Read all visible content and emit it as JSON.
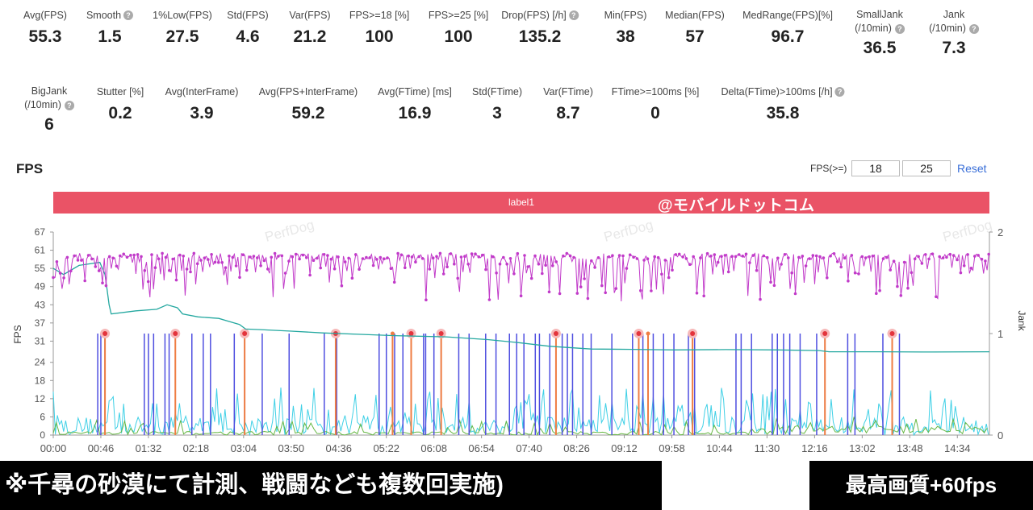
{
  "stats_row1": [
    {
      "label": "Avg(FPS)",
      "value": "55.3"
    },
    {
      "label": "Smooth",
      "value": "1.5",
      "help": true
    },
    {
      "label": "1%Low(FPS)",
      "value": "27.5"
    },
    {
      "label": "Std(FPS)",
      "value": "4.6"
    },
    {
      "label": "Var(FPS)",
      "value": "21.2"
    },
    {
      "label": "FPS>=18 [%]",
      "value": "100"
    },
    {
      "label": "FPS>=25 [%]",
      "value": "100"
    },
    {
      "label": "Drop(FPS) [/h]",
      "value": "135.2",
      "help": true
    },
    {
      "label": "Min(FPS)",
      "value": "38"
    },
    {
      "label": "Median(FPS)",
      "value": "57"
    },
    {
      "label": "MedRange(FPS)[%]",
      "value": "96.7"
    },
    {
      "label": "SmallJank",
      "label2": "(/10min)",
      "value": "36.5",
      "help": true
    },
    {
      "label": "Jank",
      "label2": "(/10min)",
      "value": "7.3",
      "help": true
    }
  ],
  "stats_row2": [
    {
      "label": "BigJank",
      "label2": "(/10min)",
      "value": "6",
      "help": true
    },
    {
      "label": "Stutter [%]",
      "value": "0.2"
    },
    {
      "label": "Avg(InterFrame)",
      "value": "3.9"
    },
    {
      "label": "Avg(FPS+InterFrame)",
      "value": "59.2"
    },
    {
      "label": "Avg(FTime) [ms]",
      "value": "16.9"
    },
    {
      "label": "Std(FTime)",
      "value": "3"
    },
    {
      "label": "Var(FTime)",
      "value": "8.7"
    },
    {
      "label": "FTime>=100ms [%]",
      "value": "0"
    },
    {
      "label": "Delta(FTime)>100ms [/h]",
      "value": "35.8",
      "help": true
    }
  ],
  "chart_header": {
    "title": "FPS",
    "threshold_label": "FPS(>=)",
    "threshold_1": "18",
    "threshold_2": "25",
    "reset_label": "Reset"
  },
  "label_bar": {
    "text": "label1",
    "color": "#ea5366"
  },
  "watermark": {
    "site": "@モバイルドットコム",
    "brand": "PerfDog"
  },
  "chart_data": {
    "type": "line",
    "ylabel": "FPS",
    "y2label": "Jank",
    "yticks": [
      0,
      6,
      12,
      18,
      24,
      31,
      37,
      43,
      49,
      55,
      61,
      67
    ],
    "y2ticks": [
      0,
      1,
      2
    ],
    "xticks": [
      "00:00",
      "00:46",
      "01:32",
      "02:18",
      "03:04",
      "03:50",
      "04:36",
      "05:22",
      "06:08",
      "06:54",
      "07:40",
      "08:26",
      "09:12",
      "09:58",
      "10:44",
      "11:30",
      "12:16",
      "13:02",
      "13:48",
      "14:34"
    ],
    "xlim_seconds": [
      0,
      905
    ],
    "colors": {
      "fps": "#c13ac9",
      "avg": "#24a8a0",
      "jank": "#4e4ee0",
      "bigjank": "#ef7d43",
      "interframe": "#3fd0e6",
      "stutter": "#67b845"
    },
    "series_avg_fps": [
      [
        0,
        55
      ],
      [
        10,
        53
      ],
      [
        25,
        56
      ],
      [
        45,
        57
      ],
      [
        50,
        53
      ],
      [
        52,
        48
      ],
      [
        54,
        43
      ],
      [
        56,
        40
      ],
      [
        80,
        41
      ],
      [
        100,
        41.5
      ],
      [
        110,
        43
      ],
      [
        120,
        42
      ],
      [
        125,
        40
      ],
      [
        140,
        39
      ],
      [
        160,
        38.5
      ],
      [
        170,
        37.5
      ],
      [
        180,
        36.5
      ],
      [
        186,
        35
      ],
      [
        200,
        34.8
      ],
      [
        230,
        34.3
      ],
      [
        260,
        33.7
      ],
      [
        300,
        33.2
      ],
      [
        330,
        32.8
      ],
      [
        380,
        32.4
      ],
      [
        420,
        31.5
      ],
      [
        450,
        30.5
      ],
      [
        480,
        29.3
      ],
      [
        520,
        28.4
      ],
      [
        560,
        28.3
      ],
      [
        600,
        28.1
      ],
      [
        650,
        28.2
      ],
      [
        700,
        28.1
      ],
      [
        740,
        27.9
      ],
      [
        750,
        27.5
      ],
      [
        800,
        27.5
      ],
      [
        850,
        27.4
      ],
      [
        905,
        27.5
      ]
    ],
    "bigjank_markers_seconds": [
      50,
      118,
      185,
      273,
      346,
      375,
      486,
      566,
      618,
      746,
      811
    ],
    "jank_spikes_seconds": [
      43,
      46,
      50,
      88,
      92,
      97,
      108,
      112,
      134,
      145,
      152,
      175,
      185,
      202,
      228,
      262,
      274,
      315,
      322,
      330,
      338,
      358,
      360,
      368,
      375,
      392,
      402,
      418,
      428,
      441,
      448,
      455,
      466,
      470,
      480,
      492,
      497,
      502,
      512,
      520,
      540,
      560,
      570,
      575,
      580,
      590,
      600,
      614,
      620,
      660,
      665,
      675,
      695,
      700,
      706,
      712,
      722,
      738,
      746,
      768,
      775,
      802,
      818
    ]
  },
  "banner_left": "※千尋の砂漠にて計測、戦闘なども複数回実施)",
  "banner_right": "最高画質+60fps"
}
